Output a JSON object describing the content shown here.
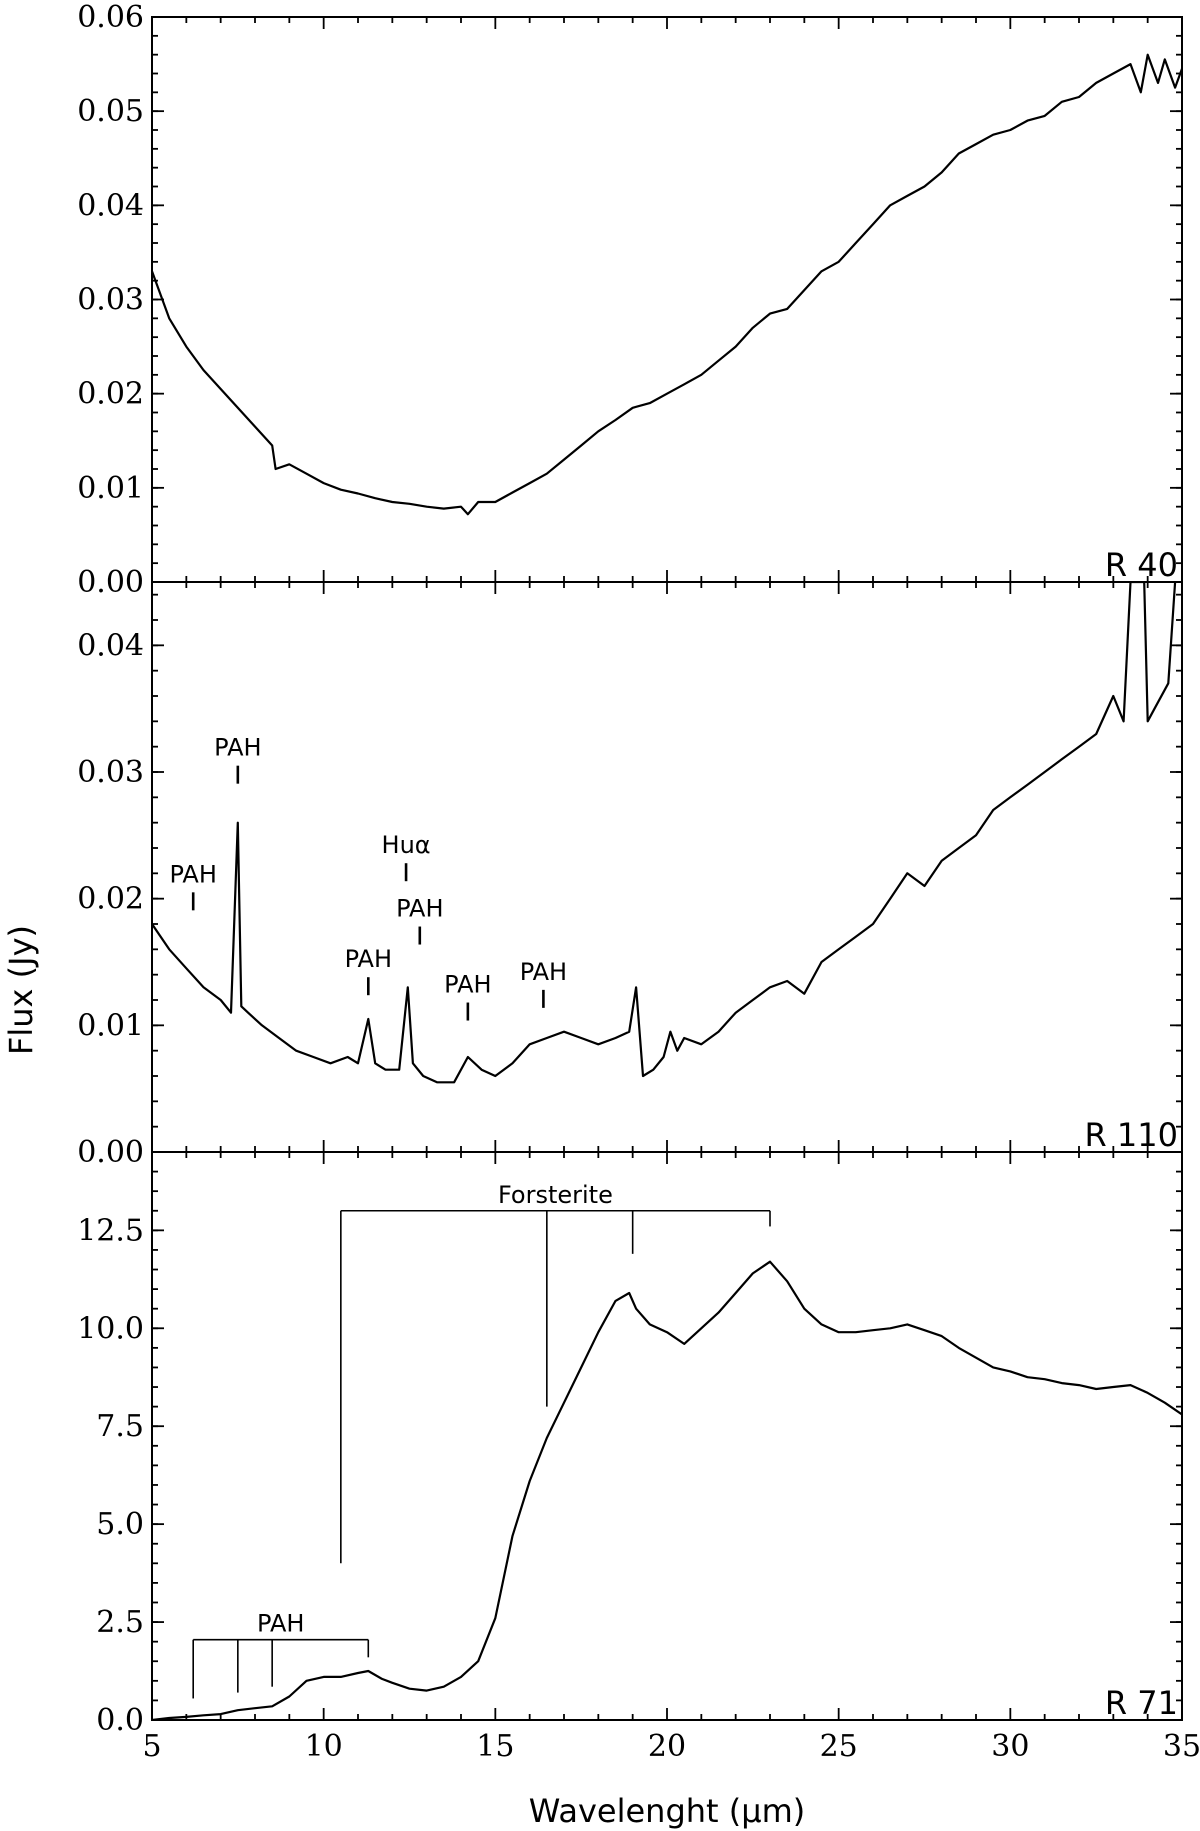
{
  "chart_data": [
    {
      "type": "line",
      "panel_label": "R 40",
      "xlim": [
        5,
        35
      ],
      "ylim": [
        0,
        0.06
      ],
      "yticks": [
        0.0,
        0.01,
        0.02,
        0.03,
        0.04,
        0.05,
        0.06
      ],
      "ytick_labels": [
        "0.00",
        "0.01",
        "0.02",
        "0.03",
        "0.04",
        "0.05",
        "0.06"
      ],
      "series": [
        {
          "x": [
            5.0,
            5.2,
            5.5,
            6.0,
            6.5,
            7.0,
            7.5,
            8.0,
            8.5,
            8.6,
            9.0,
            9.5,
            10.0,
            10.5,
            11.0,
            11.5,
            12.0,
            12.5,
            13.0,
            13.5,
            14.0,
            14.2,
            14.5,
            15.0,
            15.5,
            16.0,
            16.5,
            17.0,
            17.5,
            18.0,
            18.5,
            19.0,
            19.5,
            20.0,
            20.5,
            21.0,
            21.5,
            22.0,
            22.5,
            23.0,
            23.5,
            24.0,
            24.5,
            25.0,
            25.5,
            26.0,
            26.5,
            27.0,
            27.5,
            28.0,
            28.5,
            29.0,
            29.5,
            30.0,
            30.5,
            31.0,
            31.5,
            32.0,
            32.5,
            33.0,
            33.5,
            33.8,
            34.0,
            34.3,
            34.5,
            34.8,
            35.0
          ],
          "y": [
            0.033,
            0.031,
            0.028,
            0.025,
            0.0225,
            0.0205,
            0.0185,
            0.0165,
            0.0145,
            0.012,
            0.0125,
            0.0115,
            0.0105,
            0.0098,
            0.0094,
            0.0089,
            0.0085,
            0.0083,
            0.008,
            0.0078,
            0.008,
            0.0072,
            0.0085,
            0.0085,
            0.0095,
            0.0105,
            0.0115,
            0.013,
            0.0145,
            0.016,
            0.0172,
            0.0185,
            0.019,
            0.02,
            0.021,
            0.022,
            0.0235,
            0.025,
            0.027,
            0.0285,
            0.029,
            0.031,
            0.033,
            0.034,
            0.036,
            0.038,
            0.04,
            0.041,
            0.042,
            0.0435,
            0.0455,
            0.0465,
            0.0475,
            0.048,
            0.049,
            0.0495,
            0.051,
            0.0515,
            0.053,
            0.054,
            0.055,
            0.052,
            0.056,
            0.053,
            0.0555,
            0.0525,
            0.0545
          ]
        }
      ],
      "annotations": []
    },
    {
      "type": "line",
      "panel_label": "R 110",
      "xlim": [
        5,
        35
      ],
      "ylim": [
        0,
        0.045
      ],
      "yticks": [
        0.0,
        0.01,
        0.02,
        0.03,
        0.04
      ],
      "ytick_labels": [
        "0.00",
        "0.01",
        "0.02",
        "0.03",
        "0.04"
      ],
      "series": [
        {
          "x": [
            5.0,
            5.5,
            6.0,
            6.5,
            7.0,
            7.3,
            7.5,
            7.6,
            7.8,
            8.2,
            8.7,
            9.2,
            9.7,
            10.2,
            10.7,
            11.0,
            11.3,
            11.5,
            11.8,
            12.2,
            12.45,
            12.6,
            12.9,
            13.3,
            13.8,
            14.2,
            14.6,
            15.0,
            15.5,
            16.0,
            16.5,
            17.0,
            17.5,
            18.0,
            18.5,
            18.9,
            19.1,
            19.3,
            19.6,
            19.9,
            20.1,
            20.3,
            20.5,
            21.0,
            21.5,
            22.0,
            22.5,
            23.0,
            23.5,
            24.0,
            24.5,
            25.0,
            25.5,
            26.0,
            26.5,
            27.0,
            27.5,
            28.0,
            28.5,
            29.0,
            29.5,
            30.0,
            30.5,
            31.0,
            31.5,
            32.0,
            32.5,
            33.0,
            33.3,
            33.5,
            33.6,
            33.9,
            34.0,
            34.2,
            34.6,
            34.8
          ],
          "y": [
            0.018,
            0.016,
            0.0145,
            0.013,
            0.012,
            0.011,
            0.026,
            0.0115,
            0.011,
            0.01,
            0.009,
            0.008,
            0.0075,
            0.007,
            0.0075,
            0.007,
            0.0105,
            0.007,
            0.0065,
            0.0065,
            0.013,
            0.007,
            0.006,
            0.0055,
            0.0055,
            0.0075,
            0.0065,
            0.006,
            0.007,
            0.0085,
            0.009,
            0.0095,
            0.009,
            0.0085,
            0.009,
            0.0095,
            0.013,
            0.006,
            0.0065,
            0.0075,
            0.0095,
            0.008,
            0.009,
            0.0085,
            0.0095,
            0.011,
            0.012,
            0.013,
            0.0135,
            0.0125,
            0.015,
            0.016,
            0.017,
            0.018,
            0.02,
            0.022,
            0.021,
            0.023,
            0.024,
            0.025,
            0.027,
            0.028,
            0.029,
            0.03,
            0.031,
            0.032,
            0.033,
            0.036,
            0.034,
            0.045,
            0.045,
            0.045,
            0.034,
            0.035,
            0.037,
            0.045
          ]
        }
      ],
      "annotations": [
        {
          "text": "PAH",
          "x": 6.2,
          "y": 0.0205
        },
        {
          "text": "PAH",
          "x": 7.5,
          "y": 0.0305
        },
        {
          "text": "PAH",
          "x": 11.3,
          "y": 0.0138
        },
        {
          "text": "Huα",
          "x": 12.4,
          "y": 0.0228
        },
        {
          "text": "PAH",
          "x": 12.8,
          "y": 0.0178
        },
        {
          "text": "PAH",
          "x": 14.2,
          "y": 0.0118
        },
        {
          "text": "PAH",
          "x": 16.4,
          "y": 0.0128
        }
      ]
    },
    {
      "type": "line",
      "panel_label": "R 71",
      "xlim": [
        5,
        35
      ],
      "ylim": [
        0,
        14.5
      ],
      "yticks": [
        0.0,
        2.5,
        5.0,
        7.5,
        10.0,
        12.5
      ],
      "ytick_labels": [
        "0.0",
        "2.5",
        "5.0",
        "7.5",
        "10.0",
        "12.5"
      ],
      "xticks": [
        5,
        10,
        15,
        20,
        25,
        30,
        35
      ],
      "xtick_labels": [
        "5",
        "10",
        "15",
        "20",
        "25",
        "30",
        "35"
      ],
      "xlabel": "Wavelenght (μm)",
      "ylabel": "Flux (Jy)",
      "series": [
        {
          "x": [
            5.0,
            5.5,
            6.0,
            6.5,
            7.0,
            7.5,
            8.0,
            8.5,
            9.0,
            9.5,
            10.0,
            10.5,
            11.0,
            11.3,
            11.7,
            12.0,
            12.5,
            13.0,
            13.5,
            14.0,
            14.5,
            15.0,
            15.5,
            16.0,
            16.5,
            17.0,
            17.5,
            18.0,
            18.5,
            18.9,
            19.1,
            19.5,
            20.0,
            20.5,
            21.0,
            21.5,
            22.0,
            22.5,
            23.0,
            23.5,
            24.0,
            24.5,
            25.0,
            25.5,
            26.0,
            26.5,
            27.0,
            27.5,
            28.0,
            28.5,
            29.0,
            29.5,
            30.0,
            30.5,
            31.0,
            31.5,
            32.0,
            32.5,
            33.0,
            33.5,
            34.0,
            34.5,
            35.0
          ],
          "y": [
            0.0,
            0.05,
            0.08,
            0.12,
            0.15,
            0.25,
            0.3,
            0.35,
            0.6,
            1.0,
            1.1,
            1.1,
            1.2,
            1.25,
            1.05,
            0.95,
            0.8,
            0.75,
            0.85,
            1.1,
            1.5,
            2.6,
            4.7,
            6.1,
            7.2,
            8.1,
            9.0,
            9.9,
            10.7,
            10.9,
            10.5,
            10.1,
            9.9,
            9.6,
            10.0,
            10.4,
            10.9,
            11.4,
            11.7,
            11.2,
            10.5,
            10.1,
            9.9,
            9.9,
            9.95,
            10.0,
            10.1,
            9.95,
            9.8,
            9.5,
            9.25,
            9.0,
            8.9,
            8.75,
            8.7,
            8.6,
            8.55,
            8.45,
            8.5,
            8.55,
            8.35,
            8.1,
            7.8
          ]
        }
      ],
      "pah_bracket": {
        "label": "PAH",
        "x_start": 6.2,
        "x_end": 11.3,
        "y_bar": 2.05,
        "marks": [
          {
            "x": 6.2,
            "y_bottom": 0.55
          },
          {
            "x": 7.5,
            "y_bottom": 0.7
          },
          {
            "x": 8.5,
            "y_bottom": 0.85
          },
          {
            "x": 11.3,
            "y_bottom": 1.6
          }
        ]
      },
      "forsterite_bracket": {
        "label": "Forsterite",
        "x_start": 10.5,
        "x_end": 23.0,
        "y_bar": 13.0,
        "marks": [
          {
            "x": 10.5,
            "y_bottom": 4.0
          },
          {
            "x": 16.5,
            "y_bottom": 8.0
          },
          {
            "x": 19.0,
            "y_bottom": 11.9
          },
          {
            "x": 23.0,
            "y_bottom": 12.6
          }
        ]
      }
    }
  ]
}
